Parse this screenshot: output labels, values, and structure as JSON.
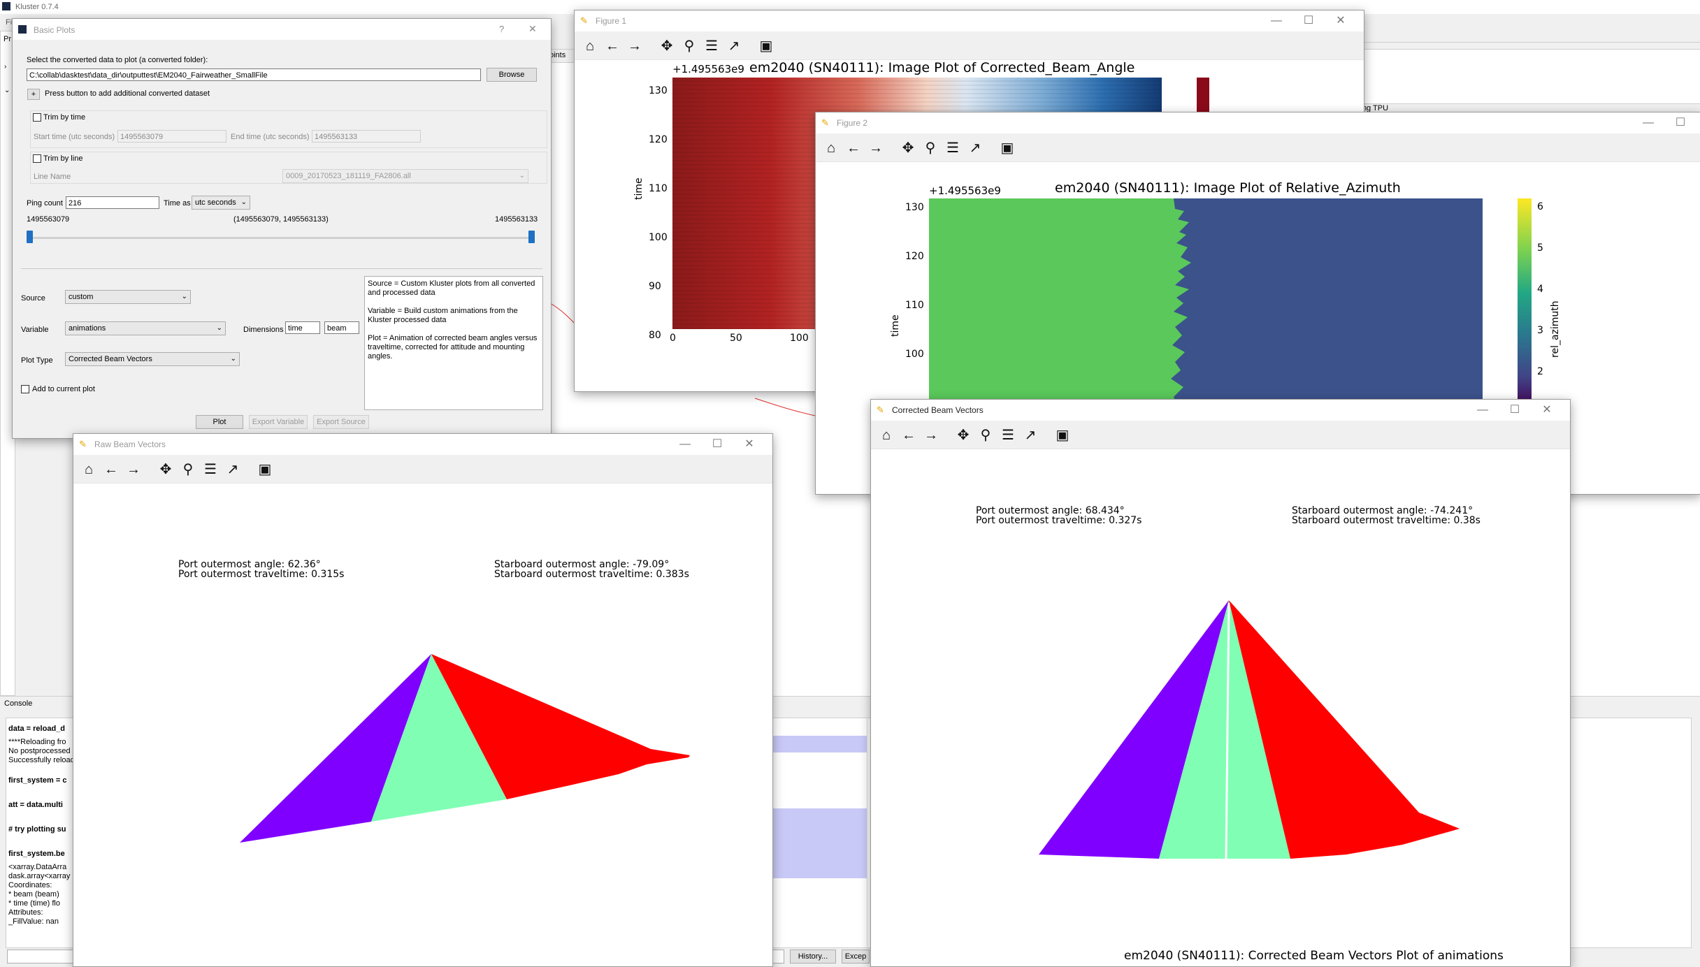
{
  "app": {
    "title": "Kluster 0.7.4",
    "menu_partial": "Fi",
    "panel_partial": "Pr",
    "tab_partial_points": "oints",
    "tab_partial_tpu": "iting TPU",
    "console_title": "Console",
    "console_lines": [
      {
        "text": "data = reload_d",
        "bold": true
      },
      {
        "text": "****Reloading fro",
        "bold": false
      },
      {
        "text": "No postprocessed",
        "bold": false
      },
      {
        "text": "Successfully reload",
        "bold": false
      },
      {
        "text": "first_system = c",
        "bold": true
      },
      {
        "text": "att = data.multi",
        "bold": true
      },
      {
        "text": "# try plotting su",
        "bold": true
      },
      {
        "text": "first_system.be",
        "bold": true
      },
      {
        "text": "<xarray.DataArra",
        "bold": false
      },
      {
        "text": "dask.array<xarray",
        "bold": false
      },
      {
        "text": "Coordinates:",
        "bold": false
      },
      {
        "text": "  * beam     (beam)",
        "bold": false
      },
      {
        "text": "  * time     (time) flo",
        "bold": false
      },
      {
        "text": "Attributes:",
        "bold": false
      },
      {
        "text": "    _FillValue:  nan",
        "bold": false
      }
    ],
    "history_button": "History...",
    "exceptions_button": "Excep"
  },
  "basic_plots": {
    "title": "Basic Plots",
    "help": "?",
    "close": "✕",
    "select_label": "Select the converted data to plot (a converted folder):",
    "path_value": "C:\\collab\\dasktest\\data_dir\\outputtest\\EM2040_Fairweather_SmallFile",
    "browse": "Browse",
    "add_symbol": "+",
    "add_label": "Press button to add additional converted dataset",
    "trim_time_label": "Trim by time",
    "start_time_label": "Start time (utc seconds)",
    "start_time_value": "1495563079",
    "end_time_label": "End time (utc seconds)",
    "end_time_value": "1495563133",
    "trim_line_label": "Trim by line",
    "line_name_label": "Line Name",
    "line_name_value": "0009_20170523_181119_FA2806.all",
    "ping_count_label": "Ping count",
    "ping_count_value": "216",
    "time_as_label": "Time as",
    "time_as_value": "utc seconds",
    "range_min": "1495563079",
    "range_text": "(1495563079, 1495563133)",
    "range_max": "1495563133",
    "source_label": "Source",
    "source_value": "custom",
    "variable_label": "Variable",
    "variable_value": "animations",
    "dimensions_label": "Dimensions",
    "dim1": "time",
    "dim2": "beam",
    "plot_type_label": "Plot Type",
    "plot_type_value": "Corrected Beam Vectors",
    "add_current_label": "Add to current plot",
    "desc_source": "Source = Custom Kluster plots from all converted and processed data",
    "desc_variable": "Variable = Build custom animations from the Kluster processed data",
    "desc_plot": "Plot = Animation of corrected beam angles versus traveltime, corrected for attitude and mounting angles.",
    "plot_button": "Plot",
    "export_variable_button": "Export Variable",
    "export_source_button": "Export Source"
  },
  "figure1": {
    "title": "Figure 1",
    "offset": "+1.495563e9",
    "plot_title": "em2040 (SN40111): Image Plot of Corrected_Beam_Angle",
    "ylabel": "time",
    "yticks": [
      "130",
      "120",
      "110",
      "100",
      "90",
      "80"
    ],
    "xticks": [
      "0",
      "50",
      "100"
    ]
  },
  "figure2": {
    "title": "Figure 2",
    "offset": "+1.495563e9",
    "plot_title": "em2040 (SN40111): Image Plot of Relative_Azimuth",
    "ylabel": "time",
    "yticks": [
      "130",
      "120",
      "110",
      "100"
    ],
    "colorbar_label": "rel_azimuth",
    "colorbar_ticks": [
      "6",
      "5",
      "4",
      "3",
      "2"
    ]
  },
  "raw": {
    "title": "Raw Beam Vectors",
    "port_angle": "Port outermost angle: 62.36°",
    "port_tt": "Port outermost traveltime: 0.315s",
    "stbd_angle": "Starboard outermost angle: -79.09°",
    "stbd_tt": "Starboard outermost traveltime: 0.383s"
  },
  "corrected": {
    "title": "Corrected Beam Vectors",
    "port_angle": "Port outermost angle: 68.434°",
    "port_tt": "Port outermost traveltime: 0.327s",
    "stbd_angle": "Starboard outermost angle: -74.241°",
    "stbd_tt": "Starboard outermost traveltime: 0.38s",
    "plot_title": "em2040 (SN40111): Corrected Beam Vectors Plot of animations"
  },
  "window_controls": {
    "minimize": "—",
    "maximize": "☐",
    "close": "✕"
  },
  "colors": {
    "port": "#8000ff",
    "nadir": "#80ffb4",
    "starboard": "#ff0000",
    "azimuth_green": "#5ac85a",
    "azimuth_navy": "#3b528b"
  }
}
